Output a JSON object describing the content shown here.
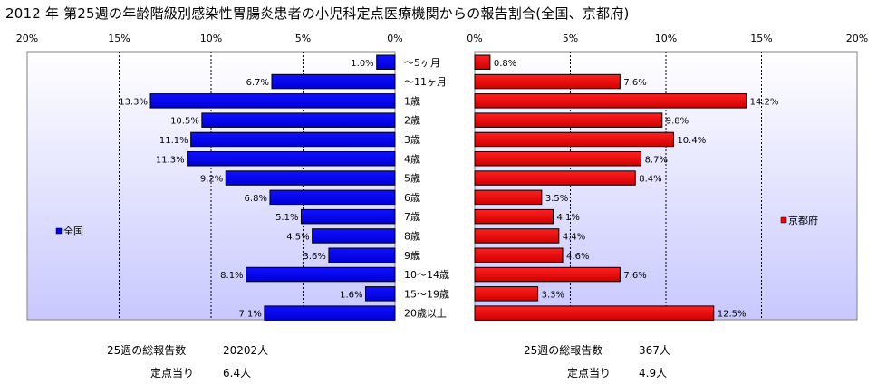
{
  "title": "2012 年 第25週の年齢階級別感染性胃腸炎患者の小児科定点医療機関からの報告割合(全国、京都府)",
  "chart_data": {
    "type": "bar",
    "orientation": "horizontal",
    "layout": "butterfly",
    "categories": [
      "～5ヶ月",
      "～11ヶ月",
      "1歳",
      "2歳",
      "3歳",
      "4歳",
      "5歳",
      "6歳",
      "7歳",
      "8歳",
      "9歳",
      "10～14歳",
      "15～19歳",
      "20歳以上"
    ],
    "xlim": [
      0,
      20
    ],
    "ticks": [
      20,
      15,
      10,
      5,
      0
    ],
    "tick_labels_left": [
      "20%",
      "15%",
      "10%",
      "5%",
      "0%"
    ],
    "tick_labels_right": [
      "0%",
      "5%",
      "10%",
      "15%",
      "20%"
    ],
    "grid": true,
    "series": [
      {
        "name": "全国",
        "side": "left",
        "color": "#0000FF",
        "values": [
          1.0,
          6.7,
          13.3,
          10.5,
          11.1,
          11.3,
          9.2,
          6.8,
          5.1,
          4.5,
          3.6,
          8.1,
          1.6,
          7.1
        ],
        "labels": [
          "1.0%",
          "6.7%",
          "13.3%",
          "10.5%",
          "11.1%",
          "11.3%",
          "9.2%",
          "6.8%",
          "5.1%",
          "4.5%",
          "3.6%",
          "8.1%",
          "1.6%",
          "7.1%"
        ]
      },
      {
        "name": "京都府",
        "side": "right",
        "color": "#FF0000",
        "values": [
          0.8,
          7.6,
          14.2,
          9.8,
          10.4,
          8.7,
          8.4,
          3.5,
          4.1,
          4.4,
          4.6,
          7.6,
          3.3,
          12.5
        ],
        "labels": [
          "0.8%",
          "7.6%",
          "14.2%",
          "9.8%",
          "10.4%",
          "8.7%",
          "8.4%",
          "3.5%",
          "4.1%",
          "4.4%",
          "4.6%",
          "7.6%",
          "3.3%",
          "12.5%"
        ]
      }
    ]
  },
  "footer": {
    "national": {
      "total_label": "25週の総報告数",
      "total_value": "20202人",
      "per_label": "定点当り",
      "per_value": "6.4人"
    },
    "kyoto": {
      "total_label": "25週の総報告数",
      "total_value": "367人",
      "per_label": "定点当り",
      "per_value": "4.9人"
    }
  },
  "colors": {
    "plot_bg_top": "#FFFFFF",
    "plot_bg_bottom": "#CCCCFF",
    "national_bar": "#0000FF",
    "kyoto_bar": "#FF0000",
    "grid": "#000000"
  }
}
